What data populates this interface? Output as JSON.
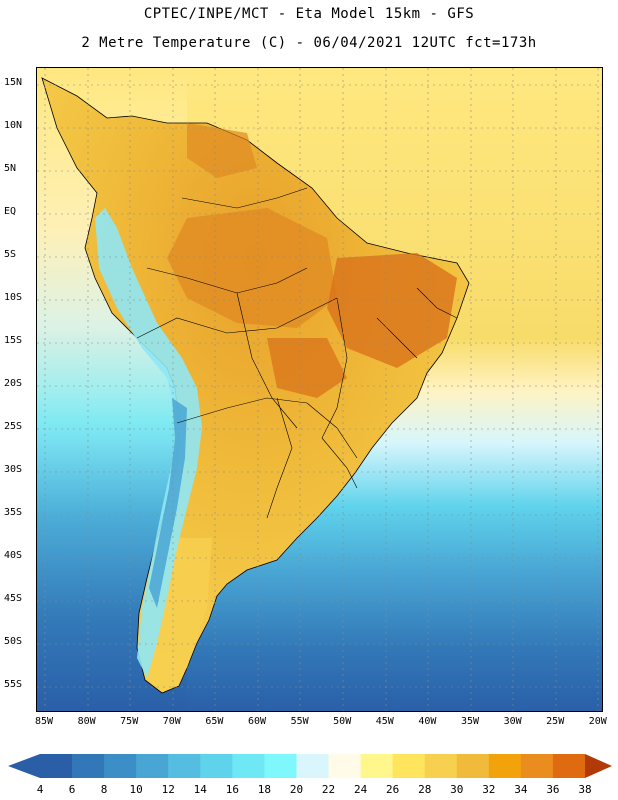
{
  "header": {
    "line1": "CPTEC/INPE/MCT -  Eta Model 15km - GFS",
    "line2": "2 Metre Temperature (C) - 06/04/2021 12UTC fct=173h"
  },
  "lat_ticks": [
    "15N",
    "10N",
    "5N",
    "EQ",
    "5S",
    "10S",
    "15S",
    "20S",
    "25S",
    "30S",
    "35S",
    "40S",
    "45S",
    "50S",
    "55S"
  ],
  "lon_ticks": [
    "85W",
    "80W",
    "75W",
    "70W",
    "65W",
    "60W",
    "55W",
    "50W",
    "45W",
    "40W",
    "35W",
    "30W",
    "25W",
    "20W"
  ],
  "legend": {
    "labels": [
      "4",
      "6",
      "8",
      "10",
      "12",
      "14",
      "16",
      "18",
      "20",
      "22",
      "24",
      "26",
      "28",
      "30",
      "32",
      "34",
      "36",
      "38"
    ],
    "colors": [
      "#2a5fa8",
      "#3278b8",
      "#3c8ec6",
      "#49a6d4",
      "#55bde0",
      "#5fd3ec",
      "#6de8f4",
      "#7ef8fc",
      "#d8f6fc",
      "#fffbe8",
      "#fff68c",
      "#ffe45e",
      "#f7d050",
      "#f0bb3a",
      "#f2a20a",
      "#ea8c1e",
      "#df6a10",
      "#c44a06",
      "#b23a06"
    ]
  },
  "palette": {
    "ocean_deep": "#2a5fa8",
    "ocean_mid": "#3c8ec6",
    "ocean_cyan": "#5fd3ec",
    "ocean_light": "#d8f6fc",
    "warm_pale": "#fff0b8",
    "warm_yellow": "#f7d050",
    "land_orange": "#f0bb3a",
    "land_hot": "#e28a1a",
    "land_hotter": "#d9731a",
    "andes_cold": "#8fe7f4"
  }
}
